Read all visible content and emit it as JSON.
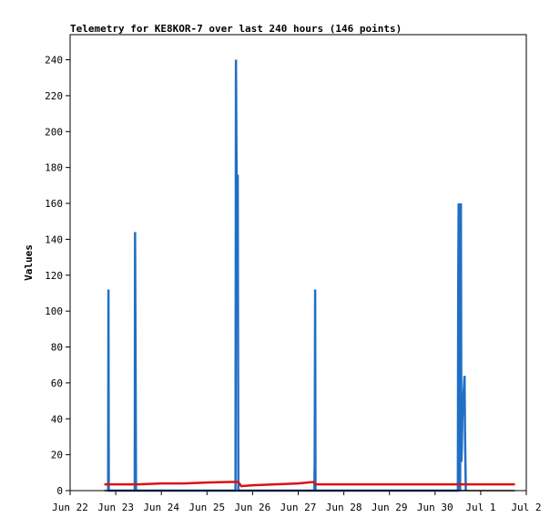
{
  "chart_data": {
    "type": "line",
    "title": "Telemetry for KE8KOR-7 over last 240 hours (146 points)",
    "ylabel": "Values",
    "xlabel": "",
    "ylim": [
      0,
      254
    ],
    "xlim": [
      "Jun 22",
      "Jul 2"
    ],
    "grid": false,
    "x_ticks": [
      "Jun 22",
      "Jun 23",
      "Jun 24",
      "Jun 25",
      "Jun 26",
      "Jun 27",
      "Jun 28",
      "Jun 29",
      "Jun 30",
      "Jul 1",
      "Jul 2"
    ],
    "y_ticks": [
      0,
      20,
      40,
      60,
      80,
      100,
      120,
      140,
      160,
      180,
      200,
      220,
      240
    ],
    "series": [
      {
        "color": "#1f6fc5",
        "points": [
          [
            "2024-06-22T20:00",
            0
          ],
          [
            "2024-06-22T20:10",
            112
          ],
          [
            "2024-06-22T20:20",
            0
          ],
          [
            "2024-06-23T10:00",
            0
          ],
          [
            "2024-06-23T10:10",
            144
          ],
          [
            "2024-06-23T10:25",
            80
          ],
          [
            "2024-06-23T10:40",
            0
          ],
          [
            "2024-06-25T15:00",
            0
          ],
          [
            "2024-06-25T15:15",
            240
          ],
          [
            "2024-06-25T15:40",
            160
          ],
          [
            "2024-06-25T16:10",
            176
          ],
          [
            "2024-06-25T16:30",
            0
          ],
          [
            "2024-06-27T08:30",
            0
          ],
          [
            "2024-06-27T08:40",
            16
          ],
          [
            "2024-06-27T08:55",
            112
          ],
          [
            "2024-06-27T09:05",
            0
          ],
          [
            "2024-06-30T12:00",
            0
          ],
          [
            "2024-06-30T12:10",
            112
          ],
          [
            "2024-06-30T12:25",
            160
          ],
          [
            "2024-06-30T12:40",
            112
          ],
          [
            "2024-06-30T12:55",
            80
          ],
          [
            "2024-06-30T13:10",
            0
          ],
          [
            "2024-06-30T13:35",
            160
          ],
          [
            "2024-06-30T13:50",
            16
          ],
          [
            "2024-06-30T14:05",
            24
          ],
          [
            "2024-06-30T14:20",
            40
          ],
          [
            "2024-06-30T14:40",
            48
          ],
          [
            "2024-06-30T15:05",
            56
          ],
          [
            "2024-06-30T15:30",
            64
          ],
          [
            "2024-06-30T15:45",
            32
          ],
          [
            "2024-06-30T16:10",
            0
          ]
        ]
      },
      {
        "color": "#dd1111",
        "points": [
          [
            "2024-06-22T18:00",
            3.5
          ],
          [
            "2024-06-23T12:00",
            3.5
          ],
          [
            "2024-06-24T00:00",
            4
          ],
          [
            "2024-06-24T12:00",
            4
          ],
          [
            "2024-06-25T00:00",
            4.5
          ],
          [
            "2024-06-25T12:00",
            4.8
          ],
          [
            "2024-06-25T16:30",
            4.8
          ],
          [
            "2024-06-25T18:00",
            2.5
          ],
          [
            "2024-06-26T00:00",
            3
          ],
          [
            "2024-06-26T12:00",
            3.5
          ],
          [
            "2024-06-27T00:00",
            4
          ],
          [
            "2024-06-27T08:00",
            4.8
          ],
          [
            "2024-06-27T09:00",
            3.5
          ],
          [
            "2024-06-28T00:00",
            3.5
          ],
          [
            "2024-06-29T00:00",
            3.5
          ],
          [
            "2024-06-30T00:00",
            3.5
          ],
          [
            "2024-07-01T00:00",
            3.5
          ],
          [
            "2024-07-01T18:00",
            3.5
          ]
        ]
      },
      {
        "color": "#000000",
        "points": [
          [
            "2024-06-22T18:00",
            0
          ],
          [
            "2024-07-01T18:00",
            0
          ]
        ]
      }
    ]
  }
}
